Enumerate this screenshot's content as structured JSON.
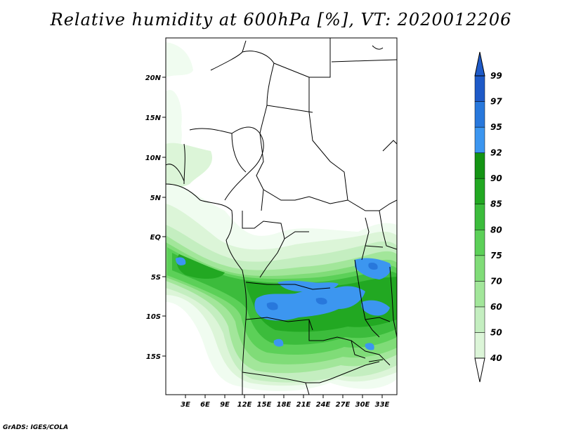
{
  "title": "Relative humidity at 600hPa [%], VT: 2020012206",
  "footer": "GrADS: IGES/COLA",
  "map": {
    "lon_labels": [
      "3E",
      "6E",
      "9E",
      "12E",
      "15E",
      "18E",
      "21E",
      "24E",
      "27E",
      "30E",
      "33E"
    ],
    "lat_labels": [
      "20N",
      "15N",
      "10N",
      "5N",
      "EQ",
      "5S",
      "10S",
      "15S"
    ]
  },
  "colorbar": {
    "levels": [
      "40",
      "50",
      "60",
      "70",
      "75",
      "80",
      "85",
      "90",
      "92",
      "95",
      "97",
      "99"
    ],
    "colors": [
      "#f0fcf0",
      "#dcf5d8",
      "#c4eec0",
      "#a2e69a",
      "#80dc78",
      "#5cd058",
      "#3cbc3c",
      "#22a822",
      "#149414",
      "#3c96f0",
      "#2878dc",
      "#1e5ac8"
    ]
  },
  "colors": {
    "c40": "#f0fcf0",
    "c50": "#dcf5d8",
    "c60": "#c4eec0",
    "c70": "#a2e69a",
    "c75": "#80dc78",
    "c80": "#5cd058",
    "c85": "#3cbc3c",
    "c90": "#22a822",
    "c95": "#3c96f0",
    "c97": "#2878dc"
  }
}
